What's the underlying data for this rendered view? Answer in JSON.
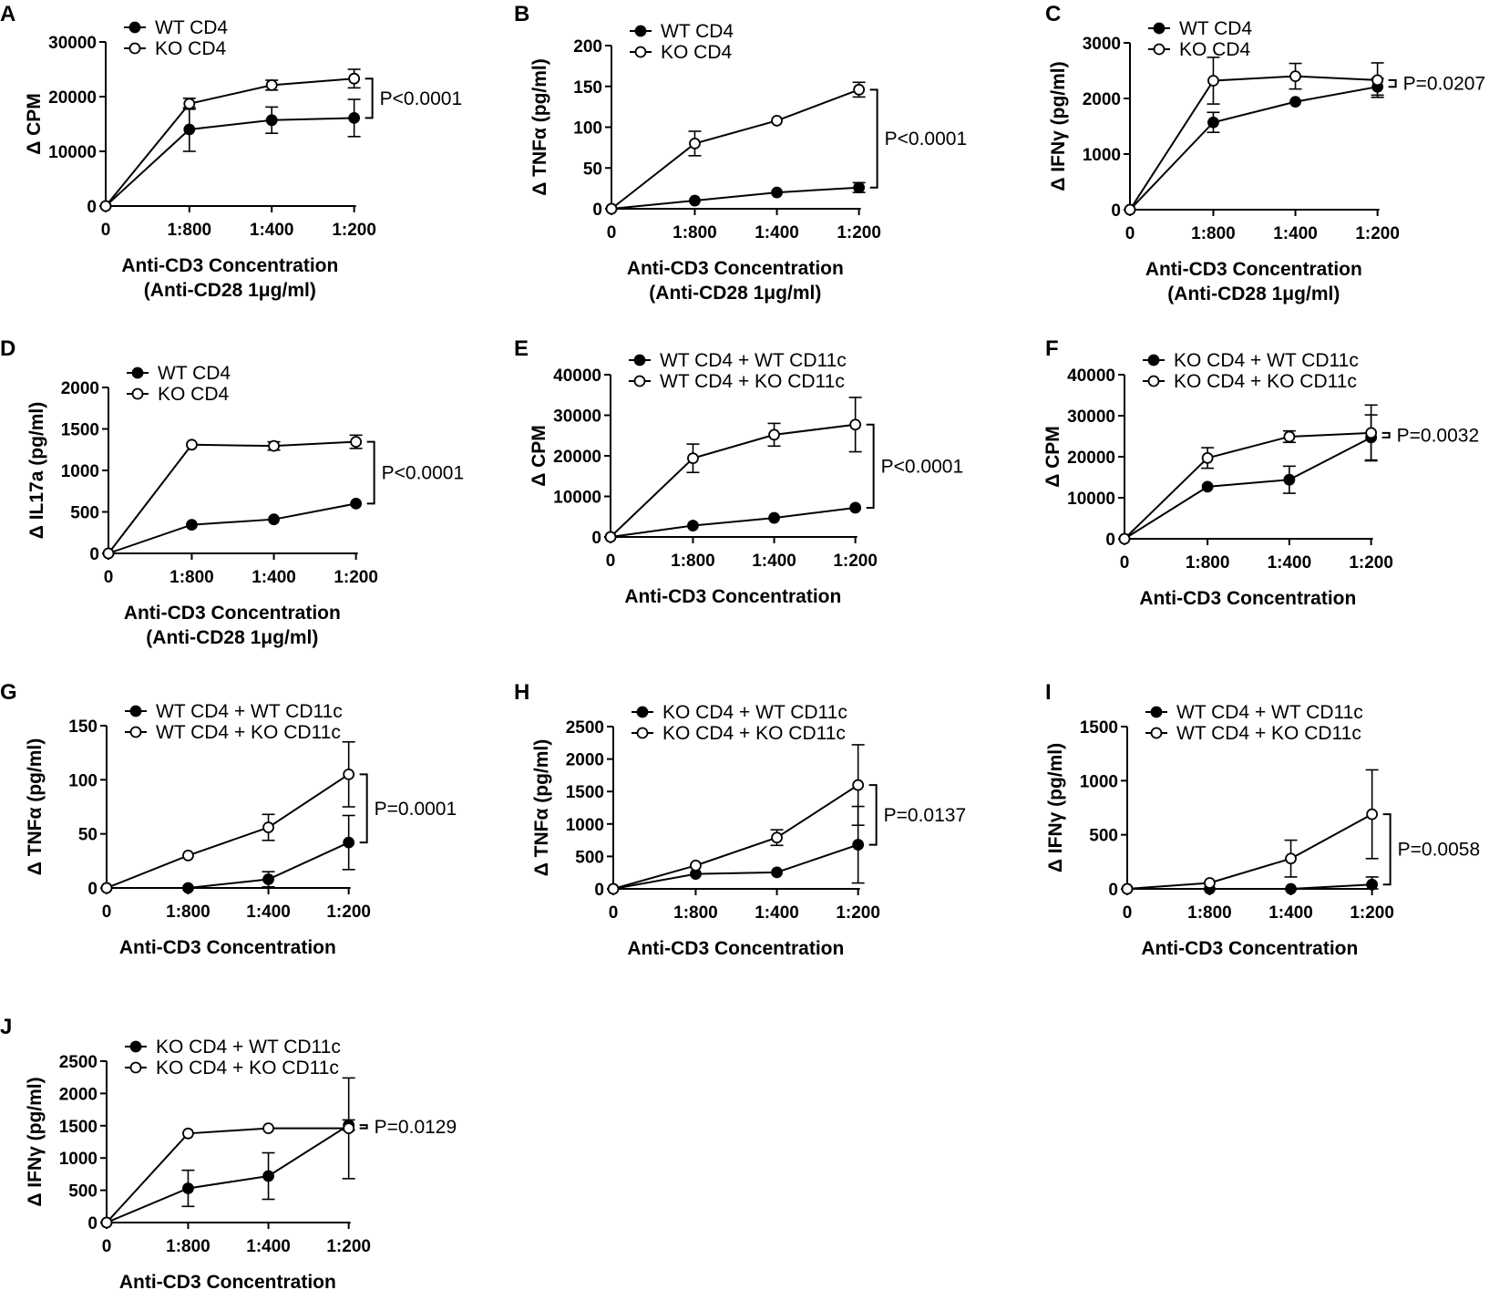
{
  "chart_data": [
    {
      "panel": "A",
      "type": "line",
      "ylabel": "Δ CPM",
      "xlabel": [
        "Anti-CD3 Concentration",
        "(Anti-CD28 1μg/ml)"
      ],
      "categories": [
        "0",
        "1:800",
        "1:400",
        "1:200"
      ],
      "ylim": [
        0,
        30000
      ],
      "yticks": [
        0,
        10000,
        20000,
        30000
      ],
      "ytick_labels": [
        "0",
        "10000",
        "20000",
        "30000"
      ],
      "series": [
        {
          "name": "WT CD4",
          "marker": "filled",
          "values": [
            0,
            14000,
            15700,
            16100
          ],
          "errors": [
            0,
            4000,
            2400,
            3400
          ]
        },
        {
          "name": "KO CD4",
          "marker": "open",
          "values": [
            0,
            18700,
            22100,
            23300
          ],
          "errors": [
            0,
            1000,
            900,
            1700
          ]
        }
      ],
      "pvalue": "P<0.0001",
      "bracket": [
        16100,
        23300
      ]
    },
    {
      "panel": "B",
      "type": "line",
      "ylabel": "Δ TNFα (pg/ml)",
      "xlabel": [
        "Anti-CD3 Concentration",
        "(Anti-CD28 1μg/ml)"
      ],
      "categories": [
        "0",
        "1:800",
        "1:400",
        "1:200"
      ],
      "ylim": [
        0,
        200
      ],
      "yticks": [
        0,
        50,
        100,
        150,
        200
      ],
      "ytick_labels": [
        "0",
        "50",
        "100",
        "150",
        "200"
      ],
      "series": [
        {
          "name": "WT CD4",
          "marker": "filled",
          "values": [
            0,
            10,
            20,
            26
          ],
          "errors": [
            0,
            0,
            0,
            6
          ]
        },
        {
          "name": "KO CD4",
          "marker": "open",
          "values": [
            0,
            80,
            108,
            146
          ],
          "errors": [
            0,
            15,
            0,
            9
          ]
        }
      ],
      "pvalue": "P<0.0001",
      "bracket": [
        26,
        146
      ]
    },
    {
      "panel": "C",
      "type": "line",
      "ylabel": "Δ IFNγ (pg/ml)",
      "xlabel": [
        "Anti-CD3 Concentration",
        "(Anti-CD28 1μg/ml)"
      ],
      "categories": [
        "0",
        "1:800",
        "1:400",
        "1:200"
      ],
      "ylim": [
        0,
        3000
      ],
      "yticks": [
        0,
        1000,
        2000,
        3000
      ],
      "ytick_labels": [
        "0",
        "1000",
        "2000",
        "3000"
      ],
      "series": [
        {
          "name": "WT CD4",
          "marker": "filled",
          "values": [
            0,
            1570,
            1940,
            2210
          ],
          "errors": [
            0,
            180,
            0,
            150
          ]
        },
        {
          "name": "KO CD4",
          "marker": "open",
          "values": [
            0,
            2320,
            2400,
            2330
          ],
          "errors": [
            0,
            420,
            230,
            310
          ]
        }
      ],
      "pvalue": "P=0.0207",
      "bracket": [
        2210,
        2330
      ]
    },
    {
      "panel": "D",
      "type": "line",
      "ylabel": "Δ IL17a (pg/ml)",
      "xlabel": [
        "Anti-CD3 Concentration",
        "(Anti-CD28 1μg/ml)"
      ],
      "categories": [
        "0",
        "1:800",
        "1:400",
        "1:200"
      ],
      "ylim": [
        0,
        2000
      ],
      "yticks": [
        0,
        500,
        1000,
        1500,
        2000
      ],
      "ytick_labels": [
        "0",
        "500",
        "1000",
        "1500",
        "2000"
      ],
      "series": [
        {
          "name": "WT CD4",
          "marker": "filled",
          "values": [
            0,
            345,
            410,
            600
          ],
          "errors": [
            0,
            0,
            0,
            0
          ]
        },
        {
          "name": "KO CD4",
          "marker": "open",
          "values": [
            0,
            1310,
            1295,
            1345
          ],
          "errors": [
            0,
            0,
            50,
            80
          ]
        }
      ],
      "pvalue": "P<0.0001",
      "bracket": [
        600,
        1345
      ]
    },
    {
      "panel": "E",
      "type": "line",
      "ylabel": "Δ CPM",
      "xlabel": [
        "Anti-CD3 Concentration"
      ],
      "categories": [
        "0",
        "1:800",
        "1:400",
        "1:200"
      ],
      "ylim": [
        0,
        40000
      ],
      "yticks": [
        0,
        10000,
        20000,
        30000,
        40000
      ],
      "ytick_labels": [
        "0",
        "10000",
        "20000",
        "30000",
        "40000"
      ],
      "series": [
        {
          "name": "WT CD4 + WT CD11c",
          "marker": "filled",
          "values": [
            0,
            2800,
            4700,
            7200
          ],
          "errors": [
            0,
            0,
            0,
            0
          ]
        },
        {
          "name": "WT CD4 + KO CD11c",
          "marker": "open",
          "values": [
            0,
            19400,
            25200,
            27700
          ],
          "errors": [
            0,
            3500,
            2800,
            6700
          ]
        }
      ],
      "pvalue": "P<0.0001",
      "bracket": [
        7200,
        27700
      ]
    },
    {
      "panel": "F",
      "type": "line",
      "ylabel": "Δ CPM",
      "xlabel": [
        "Anti-CD3 Concentration"
      ],
      "categories": [
        "0",
        "1:800",
        "1:400",
        "1:200"
      ],
      "ylim": [
        0,
        40000
      ],
      "yticks": [
        0,
        10000,
        20000,
        30000,
        40000
      ],
      "ytick_labels": [
        "0",
        "10000",
        "20000",
        "30000",
        "40000"
      ],
      "series": [
        {
          "name": "KO CD4 + WT CD11c",
          "marker": "filled",
          "values": [
            0,
            12700,
            14400,
            24700
          ],
          "errors": [
            0,
            0,
            3300,
            5500
          ]
        },
        {
          "name": "KO CD4 + KO CD11c",
          "marker": "open",
          "values": [
            0,
            19700,
            24900,
            25800
          ],
          "errors": [
            0,
            2500,
            1400,
            6800
          ]
        }
      ],
      "pvalue": "P=0.0032",
      "bracket": [
        24700,
        25800
      ]
    },
    {
      "panel": "G",
      "type": "line",
      "ylabel": "Δ TNFα (pg/ml)",
      "xlabel": [
        "Anti-CD3 Concentration"
      ],
      "categories": [
        "0",
        "1:800",
        "1:400",
        "1:200"
      ],
      "ylim": [
        0,
        150
      ],
      "yticks": [
        0,
        50,
        100,
        150
      ],
      "ytick_labels": [
        "0",
        "50",
        "100",
        "150"
      ],
      "series": [
        {
          "name": "WT CD4 + WT CD11c",
          "marker": "filled",
          "values": [
            0,
            0,
            8,
            42
          ],
          "errors": [
            0,
            0,
            7,
            25
          ]
        },
        {
          "name": "WT CD4 + KO CD11c",
          "marker": "open",
          "values": [
            0,
            30,
            56,
            105
          ],
          "errors": [
            0,
            0,
            12,
            30
          ]
        }
      ],
      "pvalue": "P=0.0001",
      "bracket": [
        42,
        105
      ]
    },
    {
      "panel": "H",
      "type": "line",
      "ylabel": "Δ TNFα (pg/ml)",
      "xlabel": [
        "Anti-CD3 Concentration"
      ],
      "categories": [
        "0",
        "1:800",
        "1:400",
        "1:200"
      ],
      "ylim": [
        0,
        2500
      ],
      "yticks": [
        0,
        500,
        1000,
        1500,
        2000,
        2500
      ],
      "ytick_labels": [
        "0",
        "500",
        "1000",
        "1500",
        "2000",
        "2500"
      ],
      "series": [
        {
          "name": "KO CD4 + WT CD11c",
          "marker": "filled",
          "values": [
            0,
            230,
            255,
            680
          ],
          "errors": [
            0,
            0,
            0,
            590
          ]
        },
        {
          "name": "KO CD4 + KO CD11c",
          "marker": "open",
          "values": [
            0,
            360,
            790,
            1600
          ],
          "errors": [
            0,
            0,
            120,
            620
          ]
        }
      ],
      "pvalue": "P=0.0137",
      "bracket": [
        680,
        1600
      ]
    },
    {
      "panel": "I",
      "type": "line",
      "ylabel": "Δ IFNγ (pg/ml)",
      "xlabel": [
        "Anti-CD3 Concentration"
      ],
      "categories": [
        "0",
        "1:800",
        "1:400",
        "1:200"
      ],
      "ylim": [
        0,
        1500
      ],
      "yticks": [
        0,
        500,
        1000,
        1500
      ],
      "ytick_labels": [
        "0",
        "500",
        "1000",
        "1500"
      ],
      "series": [
        {
          "name": "WT CD4 + WT CD11c",
          "marker": "filled",
          "values": [
            0,
            0,
            0,
            40
          ],
          "errors": [
            0,
            0,
            0,
            70
          ]
        },
        {
          "name": "WT CD4 + KO CD11c",
          "marker": "open",
          "values": [
            0,
            55,
            280,
            690
          ],
          "errors": [
            0,
            0,
            170,
            410
          ]
        }
      ],
      "pvalue": "P=0.0058",
      "bracket": [
        40,
        690
      ]
    },
    {
      "panel": "J",
      "type": "line",
      "ylabel": "Δ IFNγ (pg/ml)",
      "xlabel": [
        "Anti-CD3 Concentration"
      ],
      "categories": [
        "0",
        "1:800",
        "1:400",
        "1:200"
      ],
      "ylim": [
        0,
        2500
      ],
      "yticks": [
        0,
        500,
        1000,
        1500,
        2000,
        2500
      ],
      "ytick_labels": [
        "0",
        "500",
        "1000",
        "1500",
        "2000",
        "2500"
      ],
      "series": [
        {
          "name": "KO CD4 + WT CD11c",
          "marker": "filled",
          "values": [
            0,
            530,
            720,
            1510
          ],
          "errors": [
            0,
            280,
            360,
            80
          ]
        },
        {
          "name": "KO CD4 + KO CD11c",
          "marker": "open",
          "values": [
            0,
            1380,
            1460,
            1460
          ],
          "errors": [
            0,
            0,
            0,
            780
          ]
        }
      ],
      "pvalue": "P=0.0129",
      "bracket": [
        1460,
        1510
      ]
    }
  ]
}
